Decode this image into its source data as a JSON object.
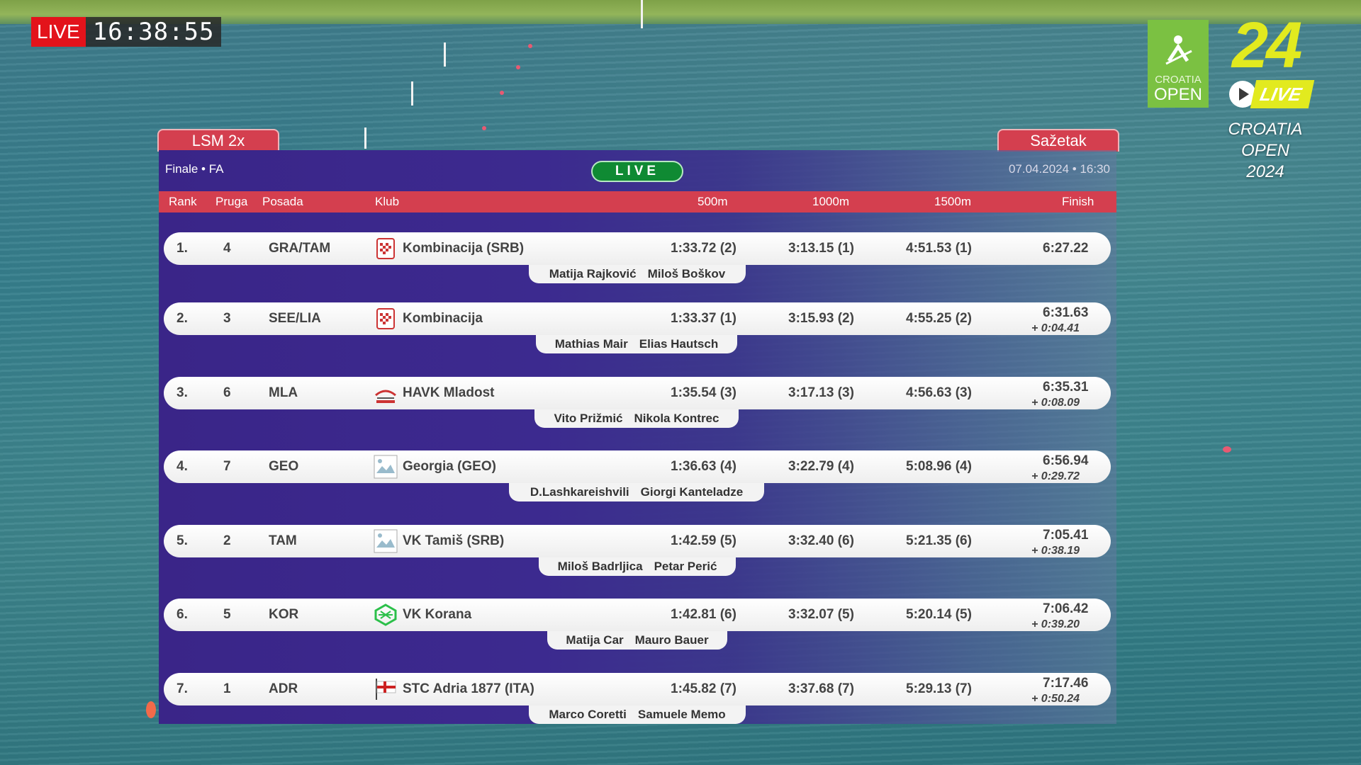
{
  "live_clock": {
    "tag": "LIVE",
    "time": "16:38:55"
  },
  "brand": {
    "logo_line1": "CROATIA",
    "logo_line2": "OPEN",
    "number": "24",
    "live_badge": "LIVE",
    "event_line1": "CROATIA",
    "event_line2": "OPEN",
    "event_line3": "2024",
    "accent_color": "#e2ea1f",
    "logo_color": "#7bc142"
  },
  "board": {
    "event_tab": "LSM 2x",
    "summary_tab": "Sažetak",
    "phase": "Finale • FA",
    "status": "LIVE",
    "datetime": "07.04.2024 • 16:30",
    "columns": {
      "rank": "Rank",
      "lane": "Pruga",
      "crew": "Posada",
      "club": "Klub",
      "s500": "500m",
      "s1000": "1000m",
      "s1500": "1500m",
      "finish": "Finish"
    },
    "rows": [
      {
        "rank": "1.",
        "lane": "4",
        "code": "GRA/TAM",
        "club": "Kombinacija (SRB)",
        "flag": "croatia-crest-icon",
        "s500": "1:33.72 (2)",
        "s1000": "3:13.15 (1)",
        "s1500": "4:51.53 (1)",
        "finish": "6:27.22",
        "gap": "",
        "crew": [
          "Matija Rajković",
          "Miloš Boškov"
        ]
      },
      {
        "rank": "2.",
        "lane": "3",
        "code": "SEE/LIA",
        "club": "Kombinacija",
        "flag": "croatia-crest-icon",
        "s500": "1:33.37 (1)",
        "s1000": "3:15.93 (2)",
        "s1500": "4:55.25 (2)",
        "finish": "6:31.63",
        "gap": "+ 0:04.41",
        "crew": [
          "Mathias Mair",
          "Elias Hautsch"
        ]
      },
      {
        "rank": "3.",
        "lane": "6",
        "code": "MLA",
        "club": "HAVK Mladost",
        "flag": "mladost-logo-icon",
        "s500": "1:35.54 (3)",
        "s1000": "3:17.13 (3)",
        "s1500": "4:56.63 (3)",
        "finish": "6:35.31",
        "gap": "+ 0:08.09",
        "crew": [
          "Vito Prižmić",
          "Nikola Kontrec"
        ]
      },
      {
        "rank": "4.",
        "lane": "7",
        "code": "GEO",
        "club": "Georgia (GEO)",
        "flag": "broken-image-icon",
        "s500": "1:36.63 (4)",
        "s1000": "3:22.79 (4)",
        "s1500": "5:08.96 (4)",
        "finish": "6:56.94",
        "gap": "+ 0:29.72",
        "crew": [
          "D.Lashkareishvili",
          "Giorgi Kanteladze"
        ]
      },
      {
        "rank": "5.",
        "lane": "2",
        "code": "TAM",
        "club": "VK Tamiš (SRB)",
        "flag": "broken-image-icon",
        "s500": "1:42.59 (5)",
        "s1000": "3:32.40 (6)",
        "s1500": "5:21.35 (6)",
        "finish": "7:05.41",
        "gap": "+ 0:38.19",
        "crew": [
          "Miloš Badrljica",
          "Petar Perić"
        ]
      },
      {
        "rank": "6.",
        "lane": "5",
        "code": "KOR",
        "club": "VK Korana",
        "flag": "korana-logo-icon",
        "s500": "1:42.81 (6)",
        "s1000": "3:32.07 (5)",
        "s1500": "5:20.14 (5)",
        "finish": "7:06.42",
        "gap": "+ 0:39.20",
        "crew": [
          "Matija Car",
          "Mauro Bauer"
        ]
      },
      {
        "rank": "7.",
        "lane": "1",
        "code": "ADR",
        "club": "STC Adria 1877 (ITA)",
        "flag": "adria-flag-icon",
        "s500": "1:45.82 (7)",
        "s1000": "3:37.68 (7)",
        "s1500": "5:29.13 (7)",
        "finish": "7:17.46",
        "gap": "+ 0:50.24",
        "crew": [
          "Marco Coretti",
          "Samuele Memo"
        ]
      }
    ]
  }
}
